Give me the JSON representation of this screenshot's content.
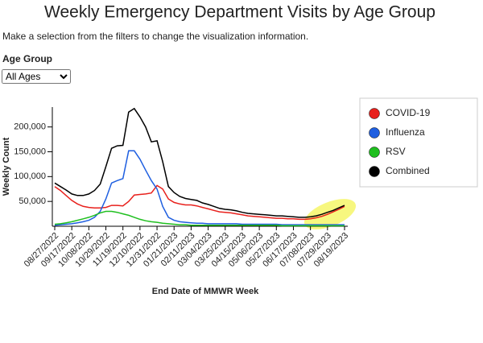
{
  "chart_data": {
    "type": "line",
    "title": "Weekly Emergency Department Visits by Age Group",
    "subtitle": "Make a selection from the filters to change the visualization information.",
    "filter_label": "Age Group",
    "filter_value": "All Ages",
    "y_label": "Weekly Count",
    "x_label": "End Date of MMWR Week",
    "categories": [
      "08/27/2022",
      null,
      null,
      "09/17/2022",
      null,
      null,
      "10/08/2022",
      null,
      null,
      "10/29/2022",
      null,
      null,
      "11/19/2022",
      null,
      null,
      "12/10/2022",
      null,
      null,
      "12/31/2022",
      null,
      null,
      "01/21/2023",
      null,
      null,
      "02/11/2023",
      null,
      null,
      "03/04/2023",
      null,
      null,
      "03/25/2023",
      null,
      null,
      "04/15/2023",
      null,
      null,
      "05/06/2023",
      null,
      null,
      "05/27/2023",
      null,
      null,
      "06/17/2023",
      null,
      null,
      "07/08/2023",
      null,
      null,
      "07/29/2023",
      null,
      null,
      "08/19/2023"
    ],
    "series": [
      {
        "name": "COVID-19",
        "color": "#e8201c",
        "values": [
          80000,
          72000,
          62000,
          52000,
          45000,
          40000,
          38000,
          37000,
          37000,
          38000,
          42000,
          42000,
          41000,
          50000,
          63000,
          64000,
          65000,
          67000,
          82000,
          75000,
          55000,
          48000,
          45000,
          43000,
          43000,
          41000,
          38000,
          35000,
          32000,
          29000,
          28000,
          27000,
          25000,
          23000,
          21000,
          20000,
          19000,
          18000,
          17000,
          16000,
          16000,
          15000,
          15000,
          14000,
          14000,
          15000,
          17000,
          20000,
          24000,
          29000,
          34000,
          40000
        ]
      },
      {
        "name": "Influenza",
        "color": "#1f5fe0",
        "values": [
          2000,
          3000,
          4000,
          5000,
          7000,
          9000,
          12000,
          18000,
          30000,
          55000,
          87000,
          92000,
          96000,
          152000,
          152000,
          135000,
          113000,
          92000,
          75000,
          40000,
          18000,
          12000,
          9000,
          8000,
          7000,
          6000,
          6000,
          5000,
          5000,
          5000,
          5000,
          5000,
          5000,
          4000,
          4000,
          4000,
          4000,
          4000,
          4000,
          4000,
          3000,
          3000,
          3000,
          3000,
          3000,
          3000,
          3000,
          3000,
          3000,
          3000,
          3000,
          3000
        ]
      },
      {
        "name": "RSV",
        "color": "#1fbf1f",
        "values": [
          4000,
          5000,
          7000,
          9000,
          12000,
          15000,
          18000,
          22000,
          27000,
          30000,
          30000,
          28000,
          25000,
          22000,
          18000,
          14000,
          11000,
          9000,
          8000,
          6000,
          5000,
          4000,
          3000,
          3000,
          2000,
          2000,
          2000,
          2000,
          2000,
          2000,
          2000,
          2000,
          2000,
          2000,
          2000,
          2000,
          2000,
          2000,
          2000,
          2000,
          1000,
          1000,
          1000,
          1000,
          1000,
          1000,
          1000,
          1000,
          1000,
          1000,
          1000,
          1000
        ]
      },
      {
        "name": "Combined",
        "color": "#000000",
        "values": [
          87000,
          80000,
          73000,
          65000,
          62000,
          62000,
          65000,
          72000,
          85000,
          120000,
          157000,
          162000,
          163000,
          230000,
          237000,
          220000,
          200000,
          170000,
          172000,
          130000,
          80000,
          68000,
          60000,
          56000,
          54000,
          52000,
          47000,
          44000,
          40000,
          36000,
          34000,
          33000,
          31000,
          28000,
          26000,
          25000,
          24000,
          23000,
          22000,
          21000,
          21000,
          20000,
          19000,
          18000,
          18000,
          19000,
          21000,
          24000,
          28000,
          32000,
          37000,
          42000
        ]
      }
    ],
    "ylim": [
      0,
      240000
    ],
    "yticks": [
      {
        "value": 50000,
        "label": "50,000"
      },
      {
        "value": 100000,
        "label": "100,000"
      },
      {
        "value": 150000,
        "label": "150,000"
      },
      {
        "value": 200000,
        "label": "200,000"
      }
    ],
    "legend": "right"
  }
}
